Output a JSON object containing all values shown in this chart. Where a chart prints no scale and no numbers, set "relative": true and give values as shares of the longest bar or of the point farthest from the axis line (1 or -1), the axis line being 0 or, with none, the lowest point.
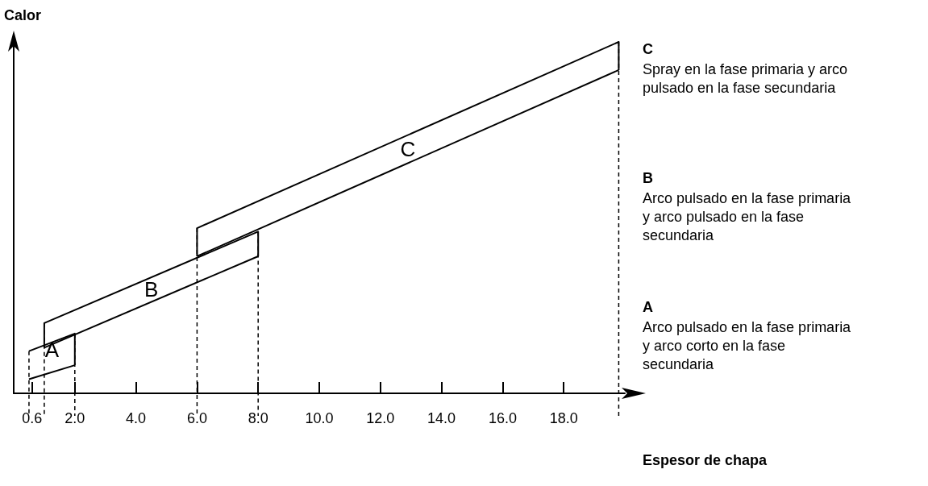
{
  "chart_data": {
    "type": "line",
    "relative": true,
    "xlabel": "Espesor de chapa",
    "ylabel": "Calor",
    "xlim": [
      0,
      20
    ],
    "xticks": [
      {
        "value": 0.6,
        "label": "0.6"
      },
      {
        "value": 2,
        "label": "2.0"
      },
      {
        "value": 4,
        "label": "4.0"
      },
      {
        "value": 6,
        "label": "6.0"
      },
      {
        "value": 8,
        "label": "8.0"
      },
      {
        "value": 10,
        "label": "10.0"
      },
      {
        "value": 12,
        "label": "12.0"
      },
      {
        "value": 14,
        "label": "14.0"
      },
      {
        "value": 16,
        "label": "16.0"
      },
      {
        "value": 18,
        "label": "18.0"
      }
    ],
    "series": [
      {
        "name": "A",
        "color": "#000000",
        "x": [
          0.5,
          2.0,
          2.0
        ],
        "values": [
          0.12,
          0.17,
          0.08
        ]
      },
      {
        "color": "#000000",
        "x": [
          0.5,
          2.0
        ],
        "values": [
          0.04,
          0.08
        ]
      },
      {
        "name": "B",
        "color": "#000000",
        "x": [
          1.0,
          1.0,
          8.0,
          8.0
        ],
        "values": [
          0.13,
          0.2,
          0.46,
          0.39
        ]
      },
      {
        "color": "#000000",
        "x": [
          1.0,
          8.0
        ],
        "values": [
          0.13,
          0.39
        ]
      },
      {
        "name": "C",
        "color": "#000000",
        "x": [
          6.0,
          6.0,
          19.8,
          19.8
        ],
        "values": [
          0.39,
          0.47,
          1.0,
          0.92
        ]
      },
      {
        "color": "#000000",
        "x": [
          6.0,
          19.8
        ],
        "values": [
          0.39,
          0.92
        ]
      }
    ],
    "ref_lines": [
      {
        "axis": "x",
        "value": 0.5,
        "line_style": "dashed"
      },
      {
        "axis": "x",
        "value": 1.0,
        "line_style": "dashed"
      },
      {
        "axis": "x",
        "value": 2.0,
        "line_style": "dashed"
      },
      {
        "axis": "x",
        "value": 6.0,
        "line_style": "dashed"
      },
      {
        "axis": "x",
        "value": 8.0,
        "line_style": "dashed"
      },
      {
        "axis": "x",
        "value": 19.8,
        "line_style": "dashed"
      }
    ],
    "annotations": [
      "Arco pulsado en la fase primaria y arco corto en la fase secundaria",
      "Arco pulsado en la fase primaria y arco pulsado en la fase secundaria",
      "Spray en la fase primaria y arco pulsado en la fase secundaria"
    ]
  }
}
